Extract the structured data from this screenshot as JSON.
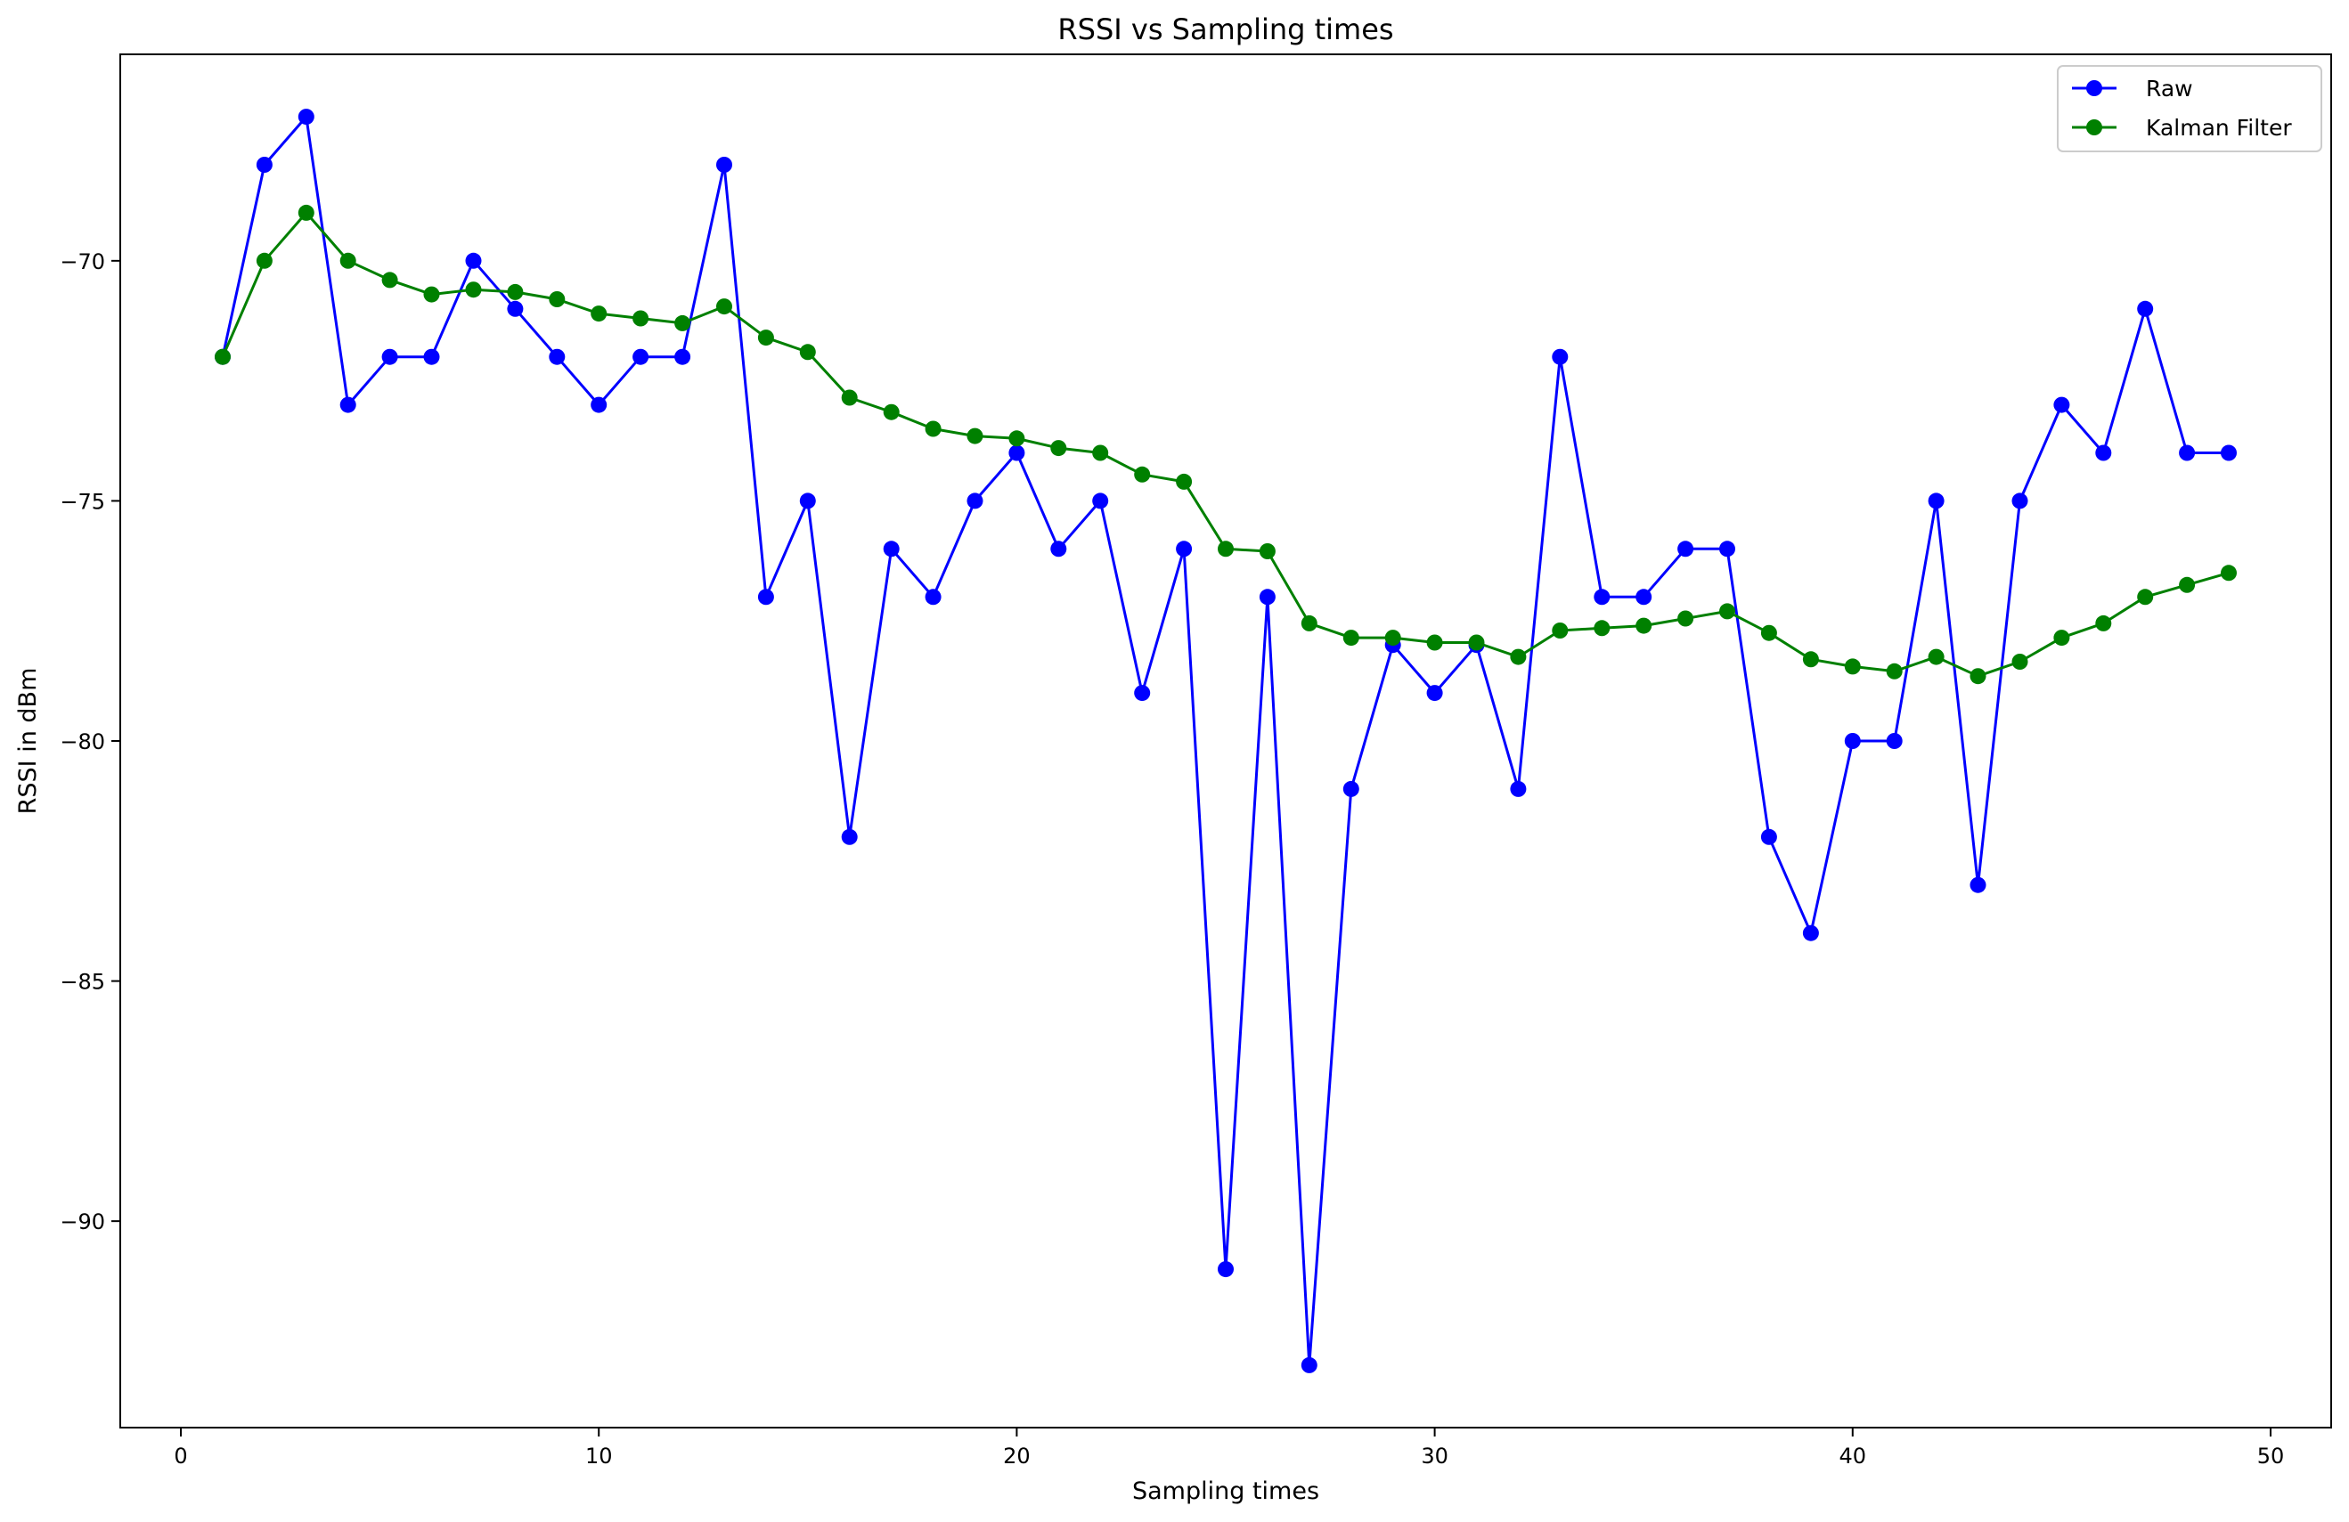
{
  "chart_data": {
    "type": "line",
    "title": "RSSI vs Sampling times",
    "xlabel": "Sampling times",
    "ylabel": "RSSI in dBm",
    "xlim": [
      -1.45,
      51.45
    ],
    "ylim": [
      -94.3,
      -65.7
    ],
    "xticks": [
      0,
      10,
      20,
      30,
      40,
      50
    ],
    "yticks": [
      -90,
      -85,
      -80,
      -75,
      -70
    ],
    "xtick_labels": [
      "0",
      "10",
      "20",
      "30",
      "40",
      "50"
    ],
    "ytick_labels": [
      "−90",
      "−85",
      "−80",
      "−75",
      "−70"
    ],
    "grid": false,
    "legend_position": "top-right",
    "x": [
      1,
      2,
      3,
      4,
      5,
      6,
      7,
      8,
      9,
      10,
      11,
      12,
      13,
      14,
      15,
      16,
      17,
      18,
      19,
      20,
      21,
      22,
      23,
      24,
      25,
      26,
      27,
      28,
      29,
      30,
      31,
      32,
      33,
      34,
      35,
      36,
      37,
      38,
      39,
      40,
      41,
      42,
      43,
      44,
      45,
      46,
      47,
      48,
      49
    ],
    "series": [
      {
        "name": "Raw",
        "color": "#0000ff",
        "values": [
          -72,
          -68,
          -67,
          -73,
          -72,
          -72,
          -70,
          -71,
          -72,
          -73,
          -72,
          -72,
          -68,
          -77,
          -75,
          -82,
          -76,
          -77,
          -75,
          -74,
          -76,
          -75,
          -79,
          -76,
          -91,
          -77,
          -93,
          -81,
          -78,
          -79,
          -78,
          -81,
          -72,
          -77,
          -77,
          -76,
          -76,
          -82,
          -84,
          -80,
          -80,
          -75,
          -83,
          -75,
          -73,
          -74,
          -71,
          -74,
          -74
        ]
      },
      {
        "name": "Kalman Filter",
        "color": "#008000",
        "values": [
          -72,
          -70,
          -69,
          -70,
          -70.4,
          -70.7,
          -70.6,
          -70.65,
          -70.8,
          -71.1,
          -71.2,
          -71.3,
          -70.95,
          -71.6,
          -71.9,
          -72.85,
          -73.15,
          -73.5,
          -73.65,
          -73.7,
          -73.9,
          -74,
          -74.45,
          -74.6,
          -76,
          -76.05,
          -77.55,
          -77.85,
          -77.85,
          -77.95,
          -77.95,
          -78.25,
          -77.7,
          -77.65,
          -77.6,
          -77.45,
          -77.3,
          -77.75,
          -78.3,
          -78.45,
          -78.55,
          -78.25,
          -78.65,
          -78.35,
          -77.85,
          -77.55,
          -77,
          -76.75,
          -76.5
        ]
      }
    ]
  }
}
